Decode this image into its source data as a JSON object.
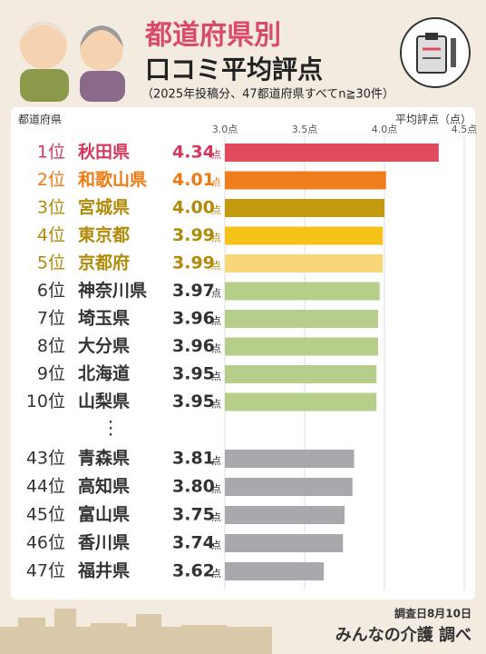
{
  "chart_data": {
    "type": "bar",
    "orientation": "horizontal",
    "title": "都道府県別",
    "subtitle_main": "口コミ平均評点",
    "subtitle": "（2025年投稿分、47都道府県すべてn≧30件）",
    "y_label": "都道府県",
    "x_label": "平均評点（点）",
    "ranks": [
      "1位",
      "2位",
      "3位",
      "4位",
      "5位",
      "6位",
      "7位",
      "8位",
      "9位",
      "10位",
      "43位",
      "44位",
      "45位",
      "46位",
      "47位"
    ],
    "categories": [
      "秋田県",
      "和歌山県",
      "宮城県",
      "東京都",
      "京都府",
      "神奈川県",
      "埼玉県",
      "大分県",
      "北海道",
      "山梨県",
      "青森県",
      "高知県",
      "富山県",
      "香川県",
      "福井県"
    ],
    "values": [
      4.34,
      4.01,
      4.0,
      3.99,
      3.99,
      3.97,
      3.96,
      3.96,
      3.95,
      3.95,
      3.81,
      3.8,
      3.75,
      3.74,
      3.62
    ],
    "value_labels": [
      "4.34",
      "4.01",
      "4.00",
      "3.99",
      "3.99",
      "3.97",
      "3.96",
      "3.96",
      "3.95",
      "3.95",
      "3.81",
      "3.80",
      "3.75",
      "3.74",
      "3.62"
    ],
    "value_unit": "点",
    "colors": [
      "#e04a5c",
      "#f07d1e",
      "#c49a0e",
      "#f5c21a",
      "#f8d67a",
      "#b7cd8a",
      "#b7cd8a",
      "#b7cd8a",
      "#b7cd8a",
      "#b7cd8a",
      "#a9a9ad",
      "#a9a9ad",
      "#a9a9ad",
      "#a9a9ad",
      "#a9a9ad"
    ],
    "label_colors": [
      "#d23a5a",
      "#ef7a12",
      "#b08a08",
      "#b08a08",
      "#b08a08",
      "#333333",
      "#333333",
      "#333333",
      "#333333",
      "#333333",
      "#333333",
      "#333333",
      "#333333",
      "#333333",
      "#333333"
    ],
    "xlim": [
      3.0,
      4.5
    ],
    "xticks": [
      {
        "value": 3.0,
        "label": "3.0点"
      },
      {
        "value": 3.5,
        "label": "3.5点"
      },
      {
        "value": 4.0,
        "label": "4.0点"
      },
      {
        "value": 4.5,
        "label": "4.5点"
      }
    ],
    "grid": true,
    "survey_date": "調査日8月10日",
    "source": "みんなの介護 調べ"
  }
}
